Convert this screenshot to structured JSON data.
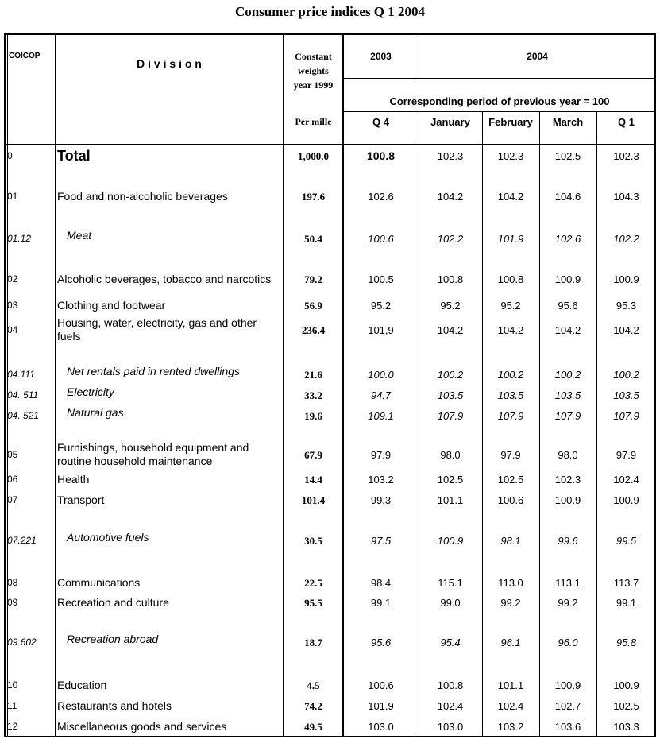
{
  "title": "Consumer price indices Q 1 2004",
  "header": {
    "coicop": "COICOP",
    "division": "D i v i s i o n",
    "weights": "Constant weights year 1999",
    "year_2003": "2003",
    "year_2004": "2004",
    "corresponding": "Corresponding period of previous year = 100",
    "per_mille": "Per mille",
    "columns": [
      "Q 4",
      "January",
      "February",
      "March",
      "Q 1"
    ]
  },
  "rows": [
    [
      "0",
      "Total",
      "1,000.0",
      "100.8",
      "102.3",
      "102.3",
      "102.5",
      "102.3"
    ],
    [
      "01",
      "Food and non-alcoholic beverages",
      "197.6",
      "102.6",
      "104.2",
      "104.2",
      "104.6",
      "104.3"
    ],
    [
      "01.12",
      "Meat",
      "50.4",
      "100.6",
      "102.2",
      "101.9",
      "102.6",
      "102.2"
    ],
    [
      "02",
      "Alcoholic beverages, tobacco and narcotics",
      "79.2",
      "100.5",
      "100.8",
      "100.8",
      "100.9",
      "100.9"
    ],
    [
      "03",
      "Clothing and footwear",
      "56.9",
      "95.2",
      "95.2",
      "95.2",
      "95.6",
      "95.3"
    ],
    [
      "04",
      "Housing, water, electricity, gas and other fuels",
      "236.4",
      "101,9",
      "104.2",
      "104.2",
      "104.2",
      "104.2"
    ],
    [
      "04.111",
      "Net rentals paid in rented dwellings",
      "21.6",
      "100.0",
      "100.2",
      "100.2",
      "100.2",
      "100.2"
    ],
    [
      "04. 511",
      "Electricity",
      "33.2",
      "94.7",
      "103.5",
      "103.5",
      "103.5",
      "103.5"
    ],
    [
      "04. 521",
      "Natural gas",
      "19.6",
      "109.1",
      "107.9",
      "107.9",
      "107.9",
      "107.9"
    ],
    [
      "05",
      "Furnishings, household equipment and routine household maintenance",
      "67.9",
      "97.9",
      "98.0",
      "97.9",
      "98.0",
      "97.9"
    ],
    [
      "06",
      "Health",
      "14.4",
      "103.2",
      "102.5",
      "102.5",
      "102.3",
      "102.4"
    ],
    [
      "07",
      "Transport",
      "101.4",
      "99.3",
      "101.1",
      "100.6",
      "100.9",
      "100.9"
    ],
    [
      "07.221",
      "Automotive fuels",
      "30.5",
      "97.5",
      "100.9",
      "98.1",
      "99.6",
      "99.5"
    ],
    [
      "08",
      "Communications",
      "22.5",
      "98.4",
      "115.1",
      "113.0",
      "113.1",
      "113.7"
    ],
    [
      "09",
      "Recreation and culture",
      "95.5",
      "99.1",
      "99.0",
      "99.2",
      "99.2",
      "99.1"
    ],
    [
      "09.602",
      "Recreation abroad",
      "18.7",
      "95.6",
      "95.4",
      "96.1",
      "96.0",
      "95.8"
    ],
    [
      "10",
      "Education",
      "4.5",
      "100.6",
      "100.8",
      "101.1",
      "100.9",
      "100.9"
    ],
    [
      "11",
      "Restaurants and hotels",
      "74.2",
      "101.9",
      "102.4",
      "102.4",
      "102.7",
      "102.5"
    ],
    [
      "12",
      "Miscellaneous goods and services",
      "49.5",
      "103.0",
      "103.0",
      "103.2",
      "103.6",
      "103.3"
    ]
  ]
}
